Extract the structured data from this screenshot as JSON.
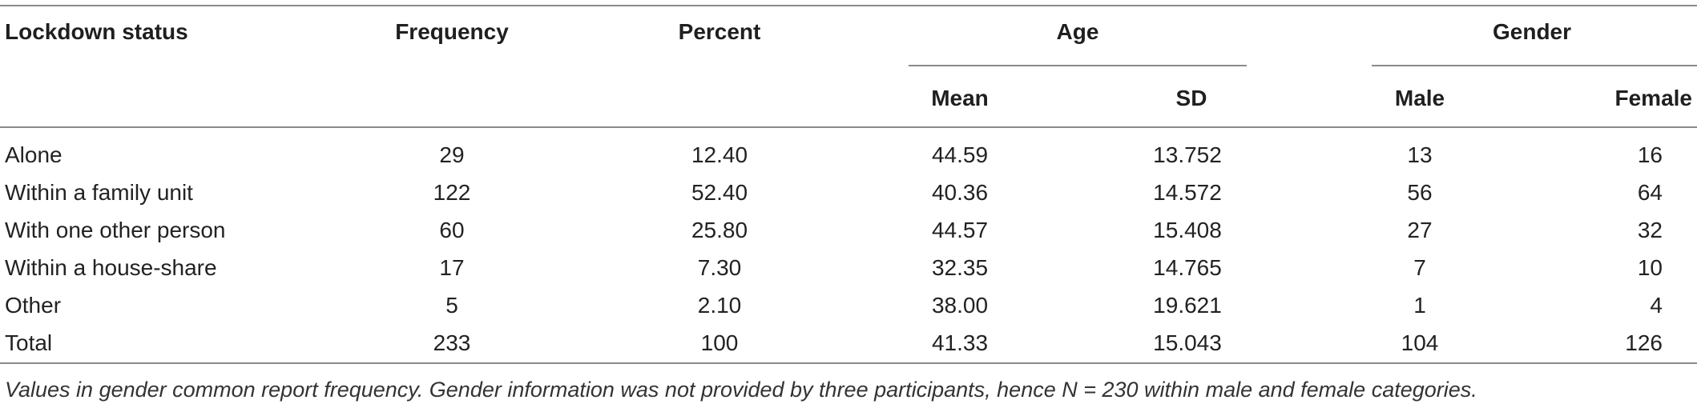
{
  "table": {
    "headers": {
      "lockdown_status": "Lockdown status",
      "frequency": "Frequency",
      "percent": "Percent",
      "age": "Age",
      "gender": "Gender",
      "mean": "Mean",
      "sd": "SD",
      "male": "Male",
      "female": "Female"
    },
    "rows": [
      {
        "status": "Alone",
        "frequency": "29",
        "percent": "12.40",
        "mean": "44.59",
        "sd": "13.752",
        "male": "13",
        "female": "16"
      },
      {
        "status": "Within a family unit",
        "frequency": "122",
        "percent": "52.40",
        "mean": "40.36",
        "sd": "14.572",
        "male": "56",
        "female": "64"
      },
      {
        "status": "With one other person",
        "frequency": "60",
        "percent": "25.80",
        "mean": "44.57",
        "sd": "15.408",
        "male": "27",
        "female": "32"
      },
      {
        "status": "Within a house-share",
        "frequency": "17",
        "percent": "7.30",
        "mean": "32.35",
        "sd": "14.765",
        "male": "7",
        "female": "10"
      },
      {
        "status": "Other",
        "frequency": "5",
        "percent": "2.10",
        "mean": "38.00",
        "sd": "19.621",
        "male": "1",
        "female": "4"
      },
      {
        "status": "Total",
        "frequency": "233",
        "percent": "100",
        "mean": "41.33",
        "sd": "15.043",
        "male": "104",
        "female": "126"
      }
    ],
    "footnote": "Values in gender common report frequency. Gender information was not provided by three participants, hence N = 230 within male and female categories."
  }
}
